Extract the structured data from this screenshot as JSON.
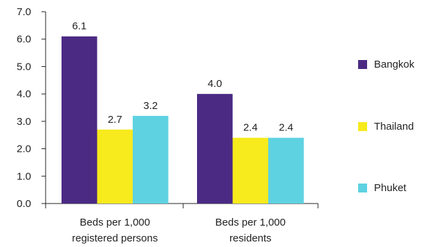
{
  "chart_data": {
    "type": "bar",
    "categories": [
      [
        "Beds per 1,000",
        "registered persons"
      ],
      [
        "Beds per 1,000",
        "residents"
      ]
    ],
    "series": [
      {
        "name": "Bangkok",
        "color": "#4b2a84",
        "values": [
          6.1,
          4.0
        ]
      },
      {
        "name": "Thailand",
        "color": "#f7ea1d",
        "values": [
          2.7,
          2.4
        ]
      },
      {
        "name": "Phuket",
        "color": "#5fd2e1",
        "values": [
          3.2,
          2.4
        ]
      }
    ],
    "value_labels": [
      [
        "6.1",
        "4.0"
      ],
      [
        "2.7",
        "2.4"
      ],
      [
        "3.2",
        "2.4"
      ]
    ],
    "yticks": [
      "0.0",
      "1.0",
      "2.0",
      "3.0",
      "4.0",
      "5.0",
      "6.0",
      "7.0"
    ],
    "ylim": [
      0,
      7
    ],
    "grid": false,
    "legend_position": "right"
  }
}
